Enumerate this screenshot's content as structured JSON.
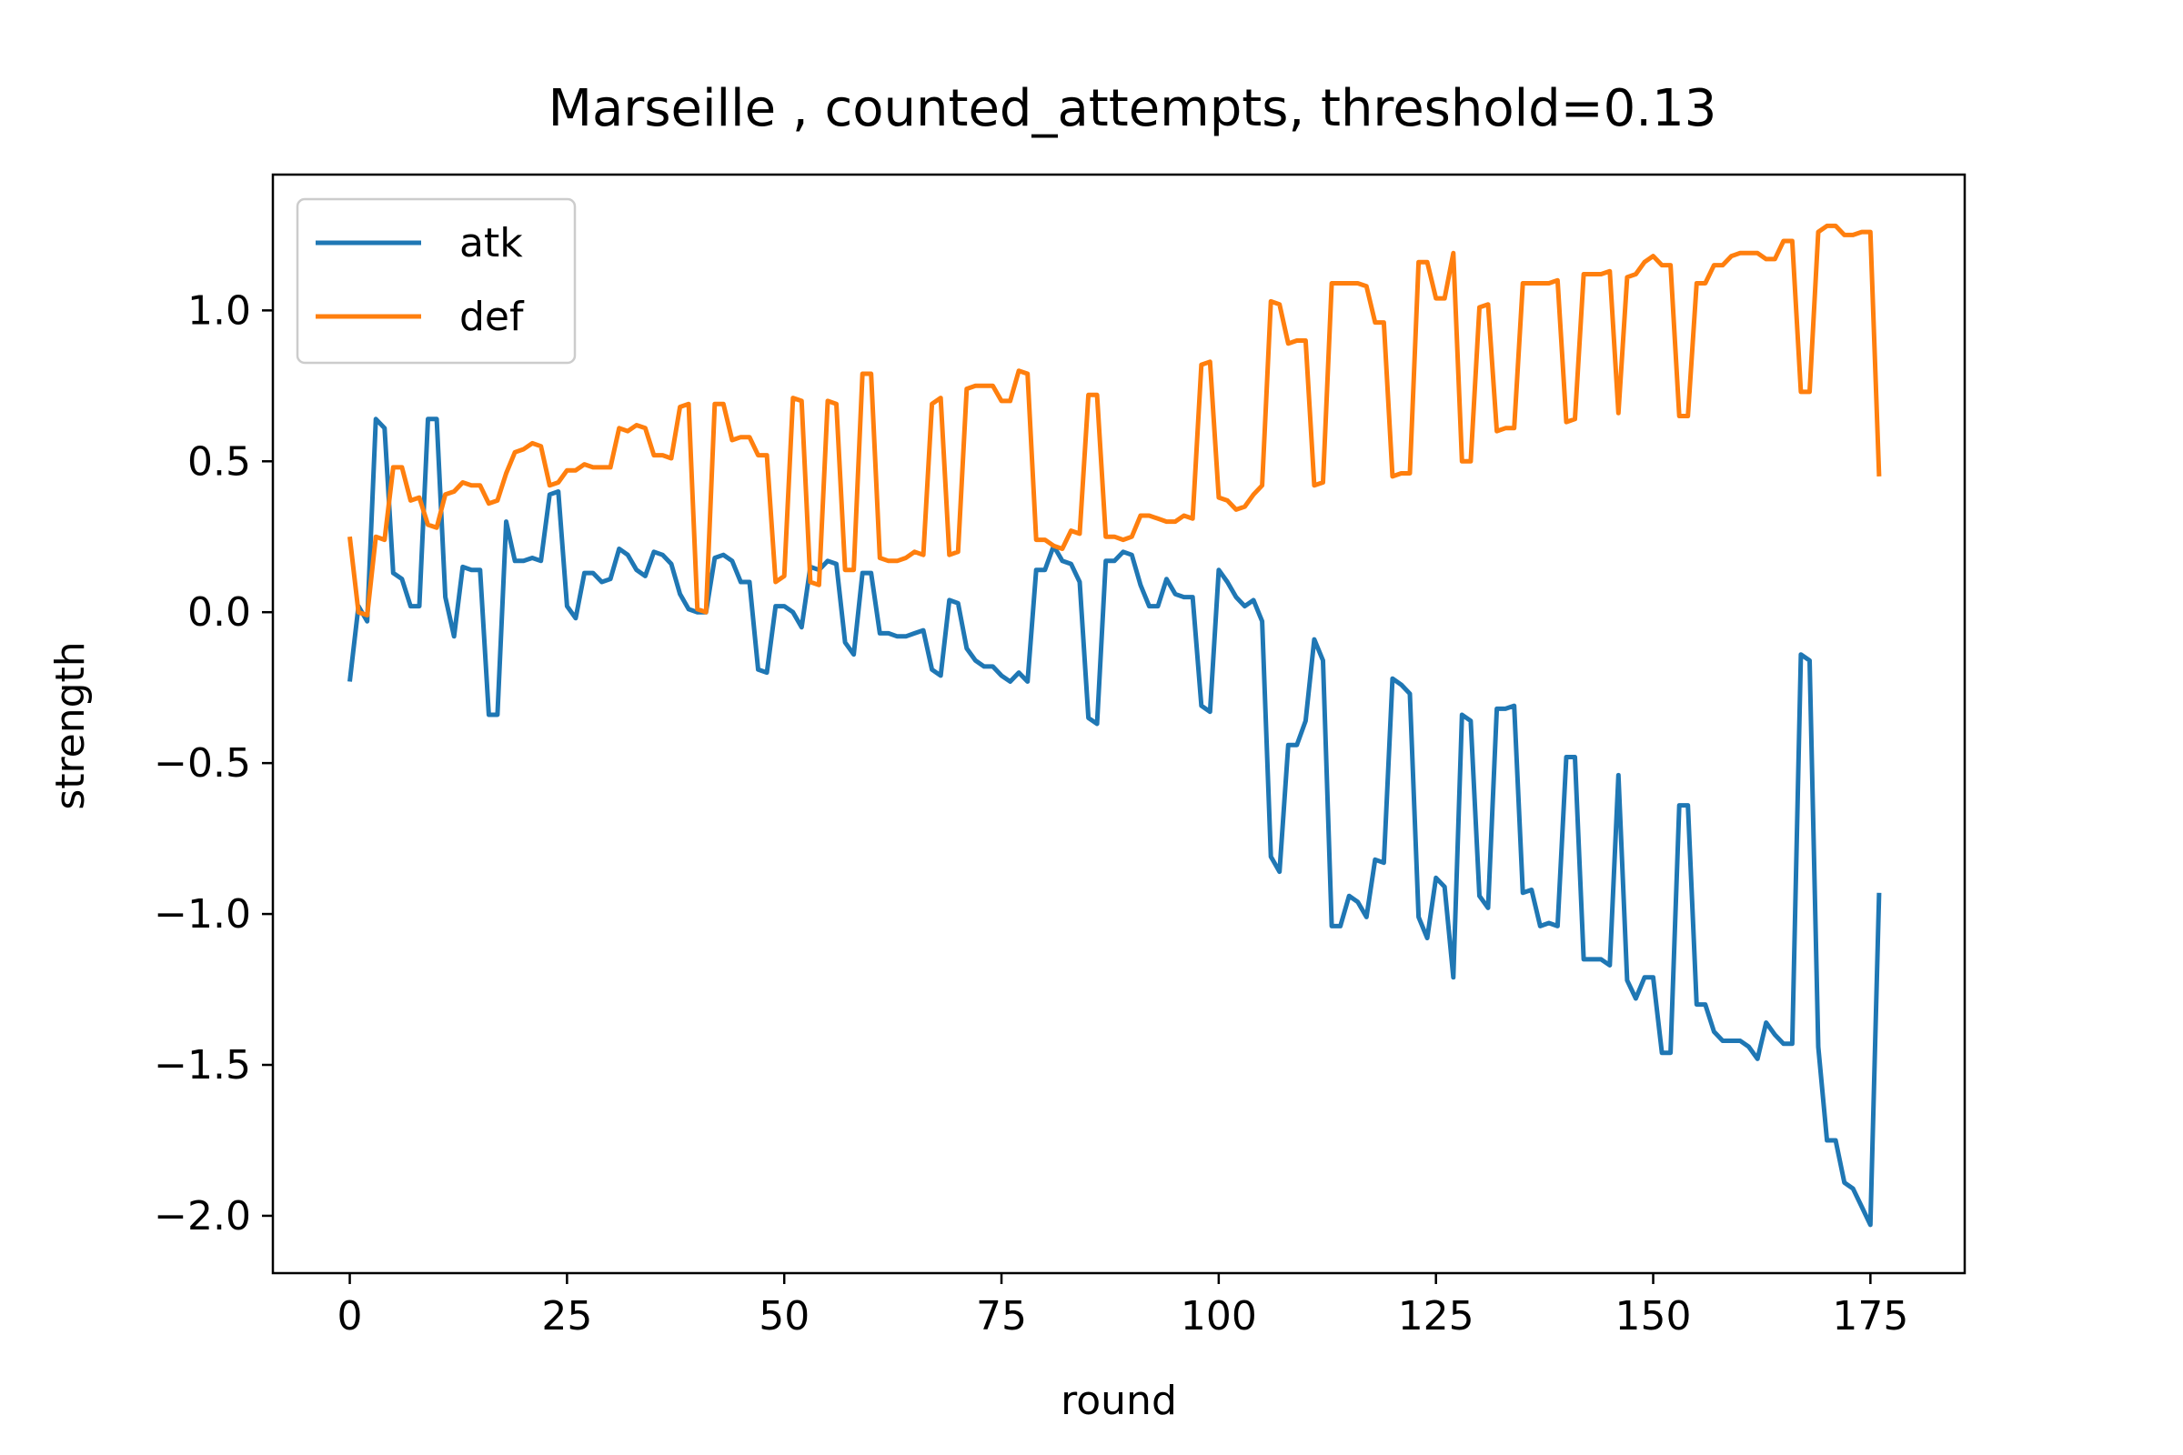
{
  "chart_data": {
    "type": "line",
    "title": "Marseille , counted_attempts, threshold=0.13",
    "xlabel": "round",
    "ylabel": "strength",
    "xlim": [
      -8.85,
      185.85
    ],
    "ylim": [
      -2.19,
      1.45
    ],
    "xticks": [
      0,
      25,
      50,
      75,
      100,
      125,
      150,
      175
    ],
    "xtick_labels": [
      "0",
      "25",
      "50",
      "75",
      "100",
      "125",
      "150",
      "175"
    ],
    "yticks": [
      -2.0,
      -1.5,
      -1.0,
      -0.5,
      0.0,
      0.5,
      1.0
    ],
    "ytick_labels": [
      "−2.0",
      "−1.5",
      "−1.0",
      "−0.5",
      "0.0",
      "0.5",
      "1.0"
    ],
    "grid": false,
    "legend_position": "upper-left",
    "series": [
      {
        "name": "atk",
        "color": "#1f77b4",
        "x": [
          0,
          1,
          2,
          3,
          4,
          5,
          6,
          7,
          8,
          9,
          10,
          11,
          12,
          13,
          14,
          15,
          16,
          17,
          18,
          19,
          20,
          21,
          22,
          23,
          24,
          25,
          26,
          27,
          28,
          29,
          30,
          31,
          32,
          33,
          34,
          35,
          36,
          37,
          38,
          39,
          40,
          41,
          42,
          43,
          44,
          45,
          46,
          47,
          48,
          49,
          50,
          51,
          52,
          53,
          54,
          55,
          56,
          57,
          58,
          59,
          60,
          61,
          62,
          63,
          64,
          65,
          66,
          67,
          68,
          69,
          70,
          71,
          72,
          73,
          74,
          75,
          76,
          77,
          78,
          79,
          80,
          81,
          82,
          83,
          84,
          85,
          86,
          87,
          88,
          89,
          90,
          91,
          92,
          93,
          94,
          95,
          96,
          97,
          98,
          99,
          100,
          101,
          102,
          103,
          104,
          105,
          106,
          107,
          108,
          109,
          110,
          111,
          112,
          113,
          114,
          115,
          116,
          117,
          118,
          119,
          120,
          121,
          122,
          123,
          124,
          125,
          126,
          127,
          128,
          129,
          130,
          131,
          132,
          133,
          134,
          135,
          136,
          137,
          138,
          139,
          140,
          141,
          142,
          143,
          144,
          145,
          146,
          147,
          148,
          149,
          150,
          151,
          152,
          153,
          154,
          155,
          156,
          157,
          158,
          159,
          160,
          161,
          162,
          163,
          164,
          165,
          166,
          167,
          168,
          169,
          170,
          171,
          172,
          173,
          174,
          175,
          176
        ],
        "values": [
          -0.23,
          0.02,
          -0.03,
          0.64,
          0.61,
          0.13,
          0.11,
          0.02,
          0.02,
          0.64,
          0.64,
          0.05,
          -0.08,
          0.15,
          0.14,
          0.14,
          -0.34,
          -0.34,
          0.3,
          0.17,
          0.17,
          0.18,
          0.17,
          0.39,
          0.4,
          0.02,
          -0.02,
          0.13,
          0.13,
          0.1,
          0.11,
          0.21,
          0.19,
          0.14,
          0.12,
          0.2,
          0.19,
          0.16,
          0.06,
          0.01,
          0.0,
          0.0,
          0.18,
          0.19,
          0.17,
          0.1,
          0.1,
          -0.19,
          -0.2,
          0.02,
          0.02,
          0.0,
          -0.05,
          0.15,
          0.14,
          0.17,
          0.16,
          -0.1,
          -0.14,
          0.13,
          0.13,
          -0.07,
          -0.07,
          -0.08,
          -0.08,
          -0.07,
          -0.06,
          -0.19,
          -0.21,
          0.04,
          0.03,
          -0.12,
          -0.16,
          -0.18,
          -0.18,
          -0.21,
          -0.23,
          -0.2,
          -0.23,
          0.14,
          0.14,
          0.22,
          0.17,
          0.16,
          0.1,
          -0.35,
          -0.37,
          0.17,
          0.17,
          0.2,
          0.19,
          0.09,
          0.02,
          0.02,
          0.11,
          0.06,
          0.05,
          0.05,
          -0.31,
          -0.33,
          0.14,
          0.1,
          0.05,
          0.02,
          0.04,
          -0.03,
          -0.81,
          -0.86,
          -0.44,
          -0.44,
          -0.36,
          -0.09,
          -0.16,
          -1.04,
          -1.04,
          -0.94,
          -0.96,
          -1.01,
          -0.82,
          -0.83,
          -0.22,
          -0.24,
          -0.27,
          -1.01,
          -1.08,
          -0.88,
          -0.91,
          -1.21,
          -0.34,
          -0.36,
          -0.94,
          -0.98,
          -0.32,
          -0.32,
          -0.31,
          -0.93,
          -0.92,
          -1.04,
          -1.03,
          -1.04,
          -0.48,
          -0.48,
          -1.15,
          -1.15,
          -1.15,
          -1.17,
          -0.54,
          -1.22,
          -1.28,
          -1.21,
          -1.21,
          -1.46,
          -1.46,
          -0.64,
          -0.64,
          -1.3,
          -1.3,
          -1.39,
          -1.42,
          -1.42,
          -1.42,
          -1.44,
          -1.48,
          -1.36,
          -1.4,
          -1.43,
          -1.43,
          -0.14,
          -0.16,
          -1.44,
          -1.75,
          -1.75,
          -1.89,
          -1.91,
          -1.97,
          -2.03,
          -0.93
        ]
      },
      {
        "name": "def",
        "color": "#ff7f0e",
        "x": [
          0,
          1,
          2,
          3,
          4,
          5,
          6,
          7,
          8,
          9,
          10,
          11,
          12,
          13,
          14,
          15,
          16,
          17,
          18,
          19,
          20,
          21,
          22,
          23,
          24,
          25,
          26,
          27,
          28,
          29,
          30,
          31,
          32,
          33,
          34,
          35,
          36,
          37,
          38,
          39,
          40,
          41,
          42,
          43,
          44,
          45,
          46,
          47,
          48,
          49,
          50,
          51,
          52,
          53,
          54,
          55,
          56,
          57,
          58,
          59,
          60,
          61,
          62,
          63,
          64,
          65,
          66,
          67,
          68,
          69,
          70,
          71,
          72,
          73,
          74,
          75,
          76,
          77,
          78,
          79,
          80,
          81,
          82,
          83,
          84,
          85,
          86,
          87,
          88,
          89,
          90,
          91,
          92,
          93,
          94,
          95,
          96,
          97,
          98,
          99,
          100,
          101,
          102,
          103,
          104,
          105,
          106,
          107,
          108,
          109,
          110,
          111,
          112,
          113,
          114,
          115,
          116,
          117,
          118,
          119,
          120,
          121,
          122,
          123,
          124,
          125,
          126,
          127,
          128,
          129,
          130,
          131,
          132,
          133,
          134,
          135,
          136,
          137,
          138,
          139,
          140,
          141,
          142,
          143,
          144,
          145,
          146,
          147,
          148,
          149,
          150,
          151,
          152,
          153,
          154,
          155,
          156,
          157,
          158,
          159,
          160,
          161,
          162,
          163,
          164,
          165,
          166,
          167,
          168,
          169,
          170,
          171,
          172,
          173,
          174,
          175,
          176
        ],
        "values": [
          0.25,
          0.0,
          -0.01,
          0.25,
          0.24,
          0.48,
          0.48,
          0.37,
          0.38,
          0.29,
          0.28,
          0.39,
          0.4,
          0.43,
          0.42,
          0.42,
          0.36,
          0.37,
          0.46,
          0.53,
          0.54,
          0.56,
          0.55,
          0.42,
          0.43,
          0.47,
          0.47,
          0.49,
          0.48,
          0.48,
          0.48,
          0.61,
          0.6,
          0.62,
          0.61,
          0.52,
          0.52,
          0.51,
          0.68,
          0.69,
          0.01,
          0.0,
          0.69,
          0.69,
          0.57,
          0.58,
          0.58,
          0.52,
          0.52,
          0.1,
          0.12,
          0.71,
          0.7,
          0.1,
          0.09,
          0.7,
          0.69,
          0.14,
          0.14,
          0.79,
          0.79,
          0.18,
          0.17,
          0.17,
          0.18,
          0.2,
          0.19,
          0.69,
          0.71,
          0.19,
          0.2,
          0.74,
          0.75,
          0.75,
          0.75,
          0.7,
          0.7,
          0.8,
          0.79,
          0.24,
          0.24,
          0.22,
          0.21,
          0.27,
          0.26,
          0.72,
          0.72,
          0.25,
          0.25,
          0.24,
          0.25,
          0.32,
          0.32,
          0.31,
          0.3,
          0.3,
          0.32,
          0.31,
          0.82,
          0.83,
          0.38,
          0.37,
          0.34,
          0.35,
          0.39,
          0.42,
          1.03,
          1.02,
          0.89,
          0.9,
          0.9,
          0.42,
          0.43,
          1.09,
          1.09,
          1.09,
          1.09,
          1.08,
          0.96,
          0.96,
          0.45,
          0.46,
          0.46,
          1.16,
          1.16,
          1.04,
          1.04,
          1.19,
          0.5,
          0.5,
          1.01,
          1.02,
          0.6,
          0.61,
          0.61,
          1.09,
          1.09,
          1.09,
          1.09,
          1.1,
          0.63,
          0.64,
          1.12,
          1.12,
          1.12,
          1.13,
          0.66,
          1.11,
          1.12,
          1.16,
          1.18,
          1.15,
          1.15,
          0.65,
          0.65,
          1.09,
          1.09,
          1.15,
          1.15,
          1.18,
          1.19,
          1.19,
          1.19,
          1.17,
          1.17,
          1.23,
          1.23,
          0.73,
          0.73,
          1.26,
          1.28,
          1.28,
          1.25,
          1.25,
          1.26,
          1.26,
          0.45
        ]
      }
    ]
  }
}
